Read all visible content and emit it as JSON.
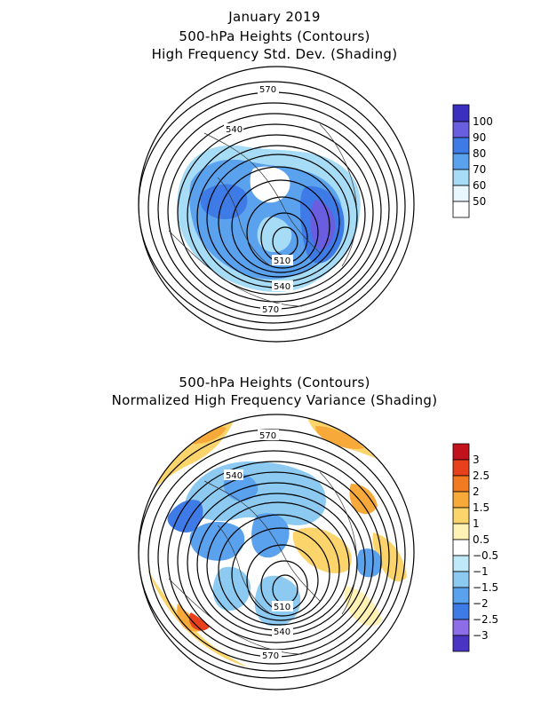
{
  "panel1": {
    "title_lines": [
      "January 2019",
      "500-hPa Heights (Contours)",
      "High Frequency Std. Dev. (Shading)"
    ],
    "contour_labels": [
      "570",
      "540",
      "510",
      "540",
      "570"
    ],
    "colorbar": {
      "labels": [
        "100",
        "90",
        "80",
        "70",
        "60",
        "50"
      ],
      "colors": [
        "#3a2fbf",
        "#6a5ee0",
        "#3e7be6",
        "#5aa1ee",
        "#a6dcf6",
        "#ffffff"
      ]
    }
  },
  "panel2": {
    "title_lines": [
      "500-hPa Heights (Contours)",
      "Normalized High Frequency Variance (Shading)"
    ],
    "contour_labels": [
      "570",
      "540",
      "510",
      "540",
      "570"
    ],
    "colorbar": {
      "labels": [
        "3",
        "2.5",
        "2",
        "1.5",
        "1",
        "0.5",
        "−0.5",
        "−1",
        "−1.5",
        "−2",
        "−2.5",
        "−3"
      ],
      "colors": [
        "#c4121c",
        "#e8401c",
        "#f27a20",
        "#f7a93a",
        "#fbd56c",
        "#fff2b4",
        "#ffffff",
        "#bfe8f8",
        "#8ccaf2",
        "#5aa1ee",
        "#3e7be6",
        "#8d6ee8",
        "#4a34c4"
      ]
    }
  }
}
